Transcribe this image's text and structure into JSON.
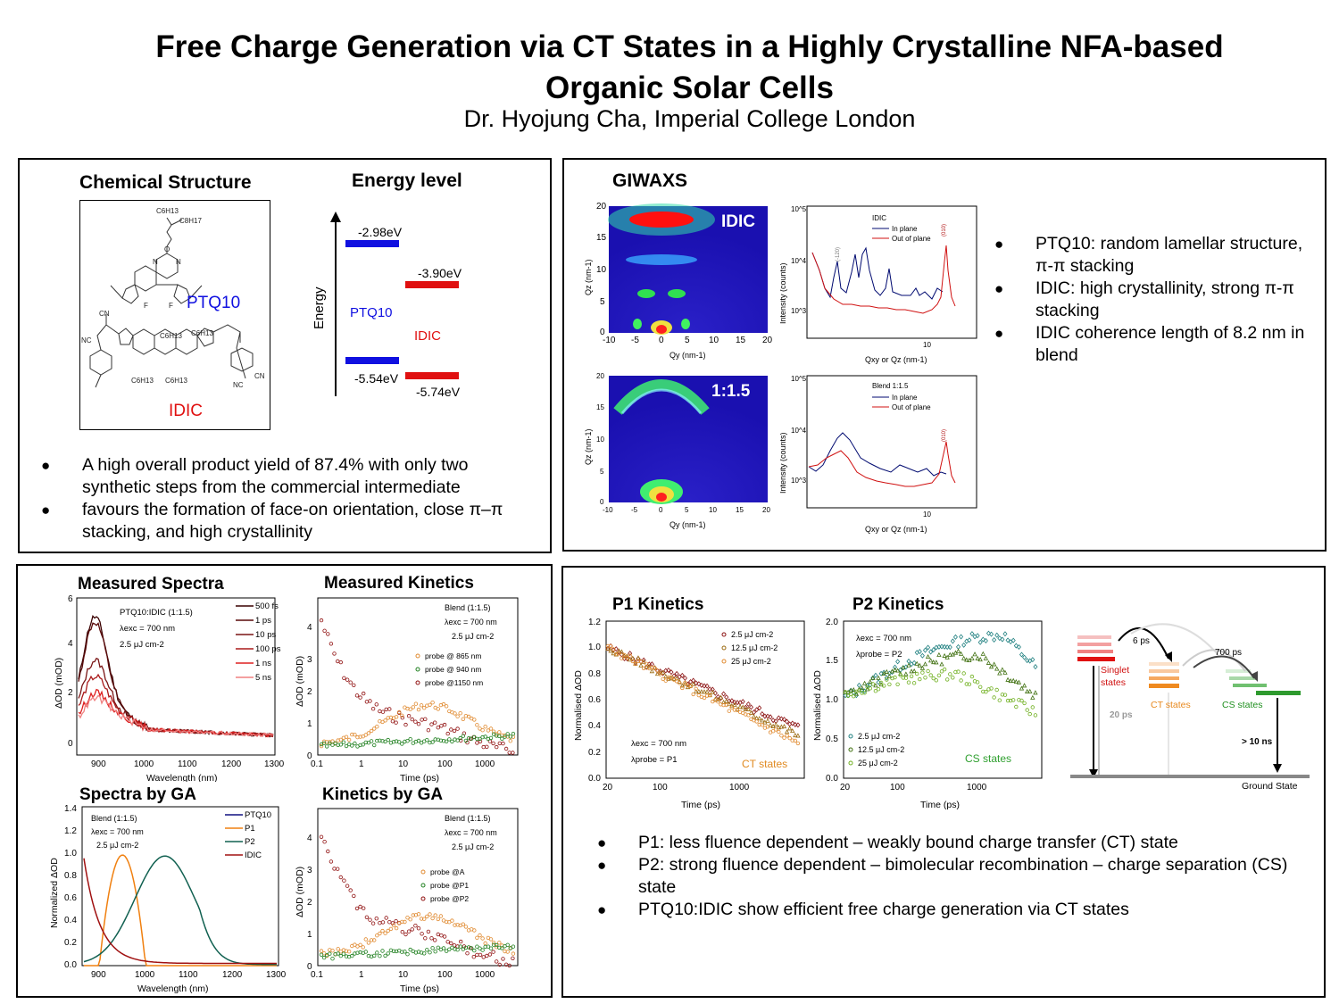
{
  "title_line1": "Free Charge Generation via CT States in a Highly Crystalline NFA-based",
  "title_line2": "Organic Solar Cells",
  "author": "Dr. Hyojung Cha, Imperial College London",
  "panel1": {
    "chem_heading": "Chemical Structure",
    "energy_heading": "Energy level",
    "ptq10_label": "PTQ10",
    "idic_label": "IDIC",
    "chem_text": {
      "c6h13": "C6H13",
      "c8h17": "C8H17",
      "o": "O",
      "n": "N",
      "f": "F",
      "cn": "CN",
      "nc": "NC"
    },
    "energy": {
      "axis_label": "Energy",
      "ptq10_lumo": "-2.98eV",
      "ptq10_homo": "-5.54eV",
      "idic_lumo": "-3.90eV",
      "idic_homo": "-5.74eV",
      "ptq10_label": "PTQ10",
      "idic_label": "IDIC",
      "ptq10_color": "#1010e0",
      "idic_color": "#e01010"
    },
    "bullets": [
      "A high overall product yield of 87.4% with only two synthetic steps from the commercial intermediate",
      "favours the formation of face-on orientation, close π–π stacking, and high crystallinity"
    ]
  },
  "panel2": {
    "heading": "GIWAXS",
    "map_top_label": "IDIC",
    "map_bottom_label": "1:1.5",
    "map_xlabel": "Qy (nm-1)",
    "map_ylabel": "Qz (nm-1)",
    "map_xticks": [
      "-10",
      "-5",
      "0",
      "5",
      "10",
      "15",
      "20"
    ],
    "map_yticks": [
      "0",
      "5",
      "10",
      "15",
      "20"
    ],
    "profile_ylabel": "Intensity (counts)",
    "profile_xlabel": "Qxy or Qz (nm-1)",
    "profile_top_legend": {
      "title": "IDIC",
      "items": [
        "In plane",
        "Out of plane"
      ]
    },
    "profile_bottom_legend": {
      "title": "Blend 1:1.5",
      "items": [
        "In plane",
        "Out of plane"
      ]
    },
    "profile_yticks": [
      "10^5",
      "10^4",
      "10^3"
    ],
    "profile_xtick": "10",
    "peak_labels": [
      "(-120)",
      "(010)"
    ],
    "bullets": [
      "PTQ10: random lamellar structure, π-π stacking",
      "IDIC: high crystallinity, strong π-π stacking",
      "IDIC coherence length of 8.2 nm in blend"
    ]
  },
  "panel3": {
    "spectra_heading": "Measured Spectra",
    "kinetics_heading": "Measured Kinetics",
    "ga_spectra_heading": "Spectra by GA",
    "ga_kinetics_heading": "Kinetics by GA",
    "spectra": {
      "title": "PTQ10:IDIC (1:1.5)",
      "cond1": "λexc = 700 nm",
      "cond2": "2.5 μJ cm-2",
      "ylabel": "ΔOD (mOD)",
      "xlabel": "Wavelength (nm)",
      "xticks": [
        "900",
        "1000",
        "1100",
        "1200",
        "1300"
      ],
      "yticks": [
        "0",
        "2",
        "4",
        "6"
      ],
      "legend": [
        "500 fs",
        "1 ps",
        "10 ps",
        "100 ps",
        "1 ns",
        "5 ns"
      ],
      "colors": [
        "#3a0000",
        "#5a0a0a",
        "#7a1515",
        "#aa1a1a",
        "#dd2020",
        "#f08080"
      ]
    },
    "kinetics": {
      "cond0": "Blend (1:1.5)",
      "cond1": "λexc = 700 nm",
      "cond2": "2.5 μJ cm-2",
      "ylabel": "ΔOD (mOD)",
      "xlabel": "Time (ps)",
      "xticks": [
        "0.1",
        "1",
        "10",
        "100",
        "1000"
      ],
      "yticks": [
        "0",
        "1",
        "2",
        "3",
        "4"
      ],
      "legend": [
        "probe @ 865 nm",
        "probe @ 940 nm",
        "probe @1150 nm"
      ]
    },
    "ga_spectra": {
      "cond0": "Blend (1:1.5)",
      "cond1": "λexc = 700 nm",
      "cond2": "2.5 μJ cm-2",
      "ylabel": "Normalized ΔOD",
      "xlabel": "Wavelength (nm)",
      "xticks": [
        "900",
        "1000",
        "1100",
        "1200",
        "1300"
      ],
      "yticks": [
        "0.0",
        "0.2",
        "0.4",
        "0.6",
        "0.8",
        "1.0",
        "1.2",
        "1.4"
      ],
      "legend": [
        "PTQ10",
        "P1",
        "P2",
        "IDIC"
      ],
      "colors": [
        "#101080",
        "#f08010",
        "#106050",
        "#a01010"
      ]
    },
    "ga_kinetics": {
      "cond0": "Blend (1:1.5)",
      "cond1": "λexc = 700 nm",
      "cond2": "2.5 μJ cm-2",
      "ylabel": "ΔOD (mOD)",
      "xlabel": "Time (ps)",
      "xticks": [
        "0.1",
        "1",
        "10",
        "100",
        "1000"
      ],
      "yticks": [
        "0",
        "1",
        "2",
        "3",
        "4"
      ],
      "legend": [
        "probe @A",
        "probe @P1",
        "probe @P2"
      ]
    }
  },
  "panel4": {
    "p1_heading": "P1 Kinetics",
    "p2_heading": "P2 Kinetics",
    "p1": {
      "ylabel": "Normalised ΔOD",
      "xlabel": "Time (ps)",
      "xticks": [
        "20",
        "100",
        "1000"
      ],
      "yticks": [
        "0.0",
        "0.2",
        "0.4",
        "0.6",
        "0.8",
        "1.0",
        "1.2"
      ],
      "legend": [
        "2.5 μJ cm-2",
        "12.5 μJ cm-2",
        "25 μJ cm-2"
      ],
      "cond1": "λexc = 700 nm",
      "cond2": "λprobe = P1",
      "state": "CT states"
    },
    "p2": {
      "ylabel": "Normalised ΔOD",
      "xlabel": "Time (ps)",
      "xticks": [
        "20",
        "100",
        "1000"
      ],
      "yticks": [
        "0.0",
        "0.5",
        "1.0",
        "1.5",
        "2.0"
      ],
      "legend": [
        "2.5 μJ cm-2",
        "12.5 μJ cm-2",
        "25 μJ cm-2"
      ],
      "cond1": "λexc = 700 nm",
      "cond2": "λprobe = P2",
      "state": "CS states"
    },
    "scheme": {
      "t1": "6 ps",
      "t2": "700 ps",
      "t3": "20 ps",
      "t4": "> 10 ns",
      "singlet": "Singlet states",
      "ct": "CT states",
      "cs": "CS states",
      "ground": "Ground State"
    },
    "bullets": [
      "P1: less fluence dependent – weakly bound charge transfer (CT) state",
      "P2: strong fluence dependent – bimolecular recombination – charge separation (CS) state",
      "PTQ10:IDIC show efficient free charge generation via CT states"
    ]
  }
}
